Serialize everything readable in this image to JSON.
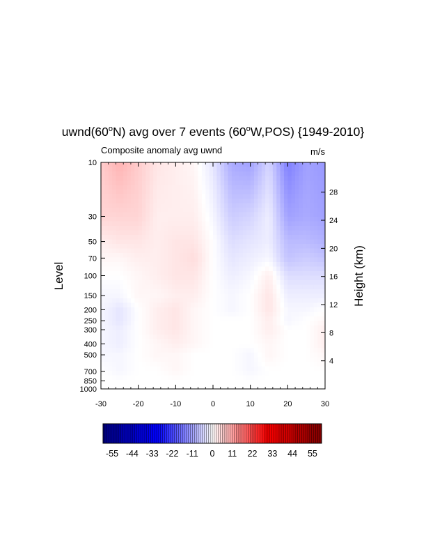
{
  "chart_data": {
    "type": "heatmap",
    "title": "uwnd(60°N) avg over 7 events (60°W,POS) {1949-2010}",
    "title_parts": {
      "pre": "uwnd(60",
      "sup1": "o",
      "mid": "N) avg over 7 events (60",
      "sup2": "o",
      "post": "W,POS) {1949-2010}"
    },
    "subtitle_left": "Composite anomaly avg uwnd",
    "subtitle_right": "m/s",
    "xlabel": "",
    "ylabel": "Level",
    "ylabel_right": "Height (km)",
    "xlim": [
      -30,
      30
    ],
    "ylim": [
      1000,
      10
    ],
    "y_scale": "log",
    "x_ticks": [
      -30,
      -20,
      -10,
      0,
      10,
      20,
      30
    ],
    "y_ticks": [
      10,
      30,
      50,
      70,
      100,
      150,
      200,
      250,
      300,
      400,
      500,
      700,
      850,
      1000
    ],
    "y_right_ticks": [
      4,
      8,
      12,
      16,
      20,
      24,
      28
    ],
    "colorbar": {
      "min": -60,
      "max": 60,
      "labels": [
        -55,
        -44,
        -33,
        -22,
        -11,
        0,
        11,
        22,
        33,
        44,
        55
      ],
      "low_color": "#00007f",
      "mid_color": "#ffffff",
      "high_color": "#7f0000"
    },
    "grid": false,
    "x": [
      -30,
      -25,
      -20,
      -15,
      -10,
      -5,
      0,
      5,
      10,
      15,
      20,
      25,
      30
    ],
    "levels": [
      10,
      30,
      50,
      70,
      100,
      150,
      200,
      250,
      300,
      400,
      500,
      700,
      850,
      1000
    ],
    "z": [
      [
        6,
        9,
        6,
        3,
        2,
        1,
        -3,
        -10,
        -11,
        -5,
        -15,
        -11,
        -12
      ],
      [
        5,
        5,
        5,
        2,
        2,
        2,
        -1,
        -6,
        -5,
        -2,
        -11,
        -10,
        -11
      ],
      [
        2,
        3,
        3,
        2,
        3,
        3,
        0,
        -4,
        -3,
        -2,
        -8,
        -8,
        -9
      ],
      [
        1,
        1,
        2,
        2,
        3,
        4,
        0,
        -3,
        -2,
        -1,
        -7,
        -6,
        -7
      ],
      [
        0,
        0,
        1,
        2,
        3,
        3,
        0,
        -2,
        -1,
        2,
        -4,
        -4,
        -4
      ],
      [
        -1,
        -1,
        1,
        1,
        2,
        2,
        0,
        -1,
        0,
        3,
        -2,
        -2,
        -2
      ],
      [
        -1,
        -3,
        0,
        2,
        3,
        1,
        0,
        -1,
        0,
        3,
        -1,
        -1,
        0
      ],
      [
        -1,
        -3,
        0,
        2,
        3,
        1,
        0,
        0,
        0,
        2,
        -1,
        0,
        1
      ],
      [
        -1,
        -2,
        0,
        2,
        3,
        1,
        0,
        0,
        0,
        2,
        0,
        0,
        2
      ],
      [
        -1,
        -2,
        0,
        1,
        2,
        1,
        0,
        0,
        0,
        1,
        0,
        0,
        2
      ],
      [
        -1,
        -1,
        0,
        1,
        1,
        0,
        0,
        0,
        -1,
        1,
        0,
        0,
        1
      ],
      [
        0,
        -1,
        0,
        0,
        1,
        0,
        0,
        0,
        -1,
        0,
        0,
        0,
        0
      ],
      [
        0,
        0,
        0,
        0,
        0,
        0,
        0,
        0,
        0,
        0,
        0,
        0,
        0
      ],
      [
        0,
        0,
        0,
        0,
        0,
        0,
        0,
        0,
        0,
        0,
        0,
        0,
        0
      ]
    ]
  }
}
